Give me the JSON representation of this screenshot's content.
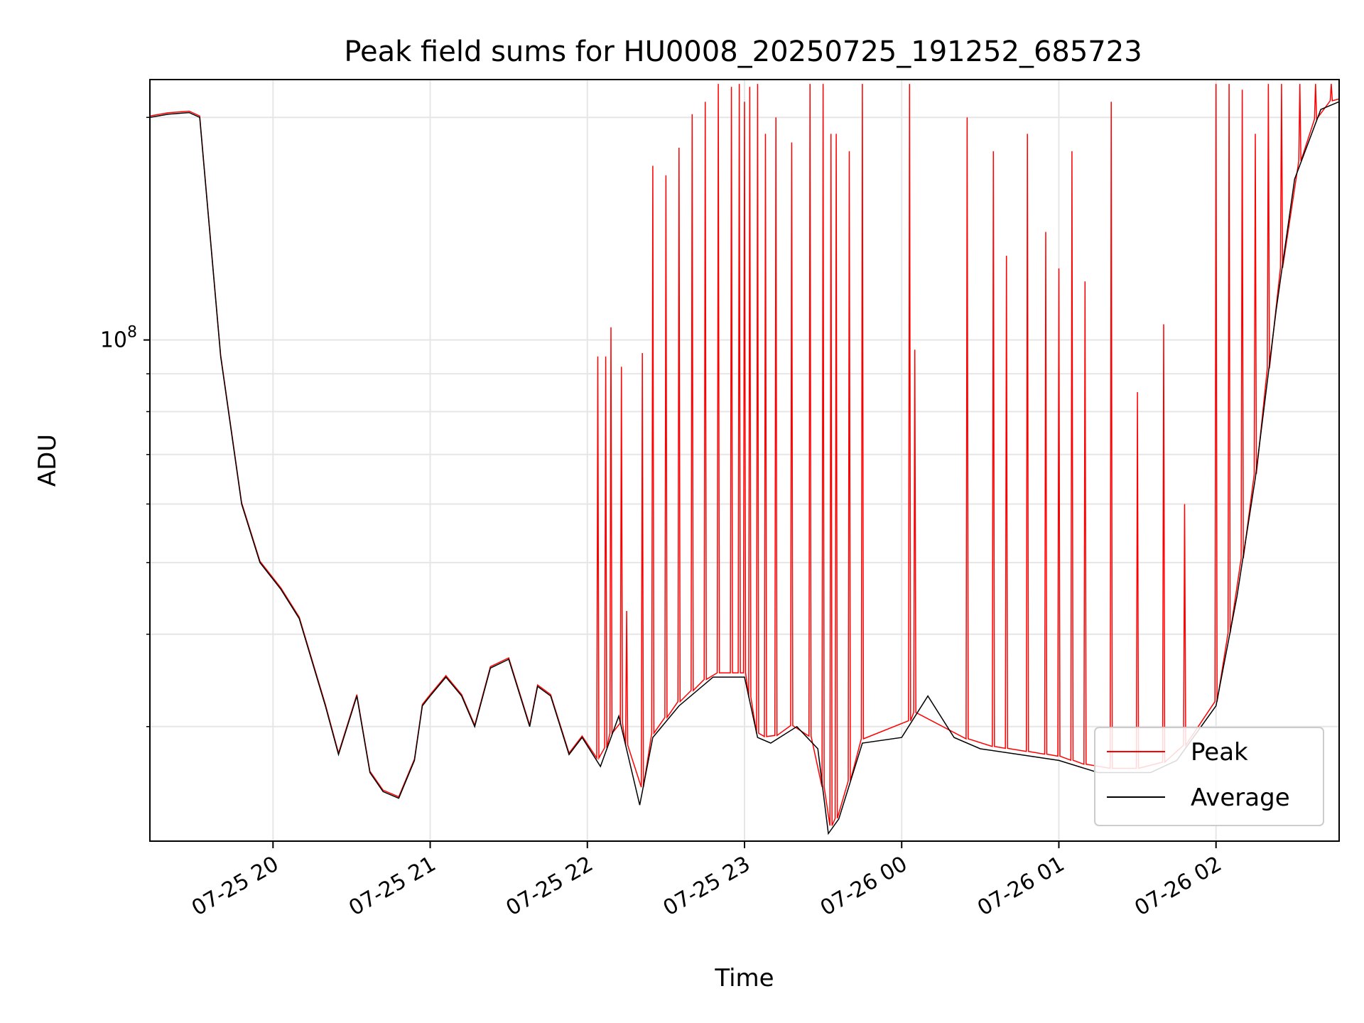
{
  "chart_data": {
    "type": "line",
    "title": "Peak field sums for HU0008_20250725_191252_685723",
    "xlabel": "Time",
    "ylabel": "ADU",
    "y_scale": "log",
    "xlim": [
      "2025-07-25T19:13",
      "2025-07-26T02:47"
    ],
    "ylim": [
      21000000,
      225000000
    ],
    "x_ticks": [
      "07-25 20",
      "07-25 21",
      "07-25 22",
      "07-25 23",
      "07-26 00",
      "07-26 01",
      "07-26 02"
    ],
    "y_ticks": [
      {
        "label": "10",
        "exponent": "8",
        "value": 100000000
      }
    ],
    "y_minor_ticks": [
      30000000,
      40000000,
      50000000,
      60000000,
      70000000,
      80000000,
      90000000,
      200000000
    ],
    "grid": true,
    "legend": {
      "position": "lower-right",
      "entries": [
        "Peak",
        "Average"
      ]
    },
    "colors": {
      "Peak": "#ff0000",
      "Average": "#000000",
      "grid": "#e6e6e6"
    },
    "series": [
      {
        "name": "Average",
        "x": [
          "2025-07-25T19:13",
          "2025-07-25T19:20",
          "2025-07-25T19:28",
          "2025-07-25T19:32",
          "2025-07-25T19:40",
          "2025-07-25T19:48",
          "2025-07-25T19:55",
          "2025-07-25T20:03",
          "2025-07-25T20:10",
          "2025-07-25T20:20",
          "2025-07-25T20:25",
          "2025-07-25T20:32",
          "2025-07-25T20:37",
          "2025-07-25T20:42",
          "2025-07-25T20:48",
          "2025-07-25T20:54",
          "2025-07-25T20:57",
          "2025-07-25T21:00",
          "2025-07-25T21:06",
          "2025-07-25T21:12",
          "2025-07-25T21:17",
          "2025-07-25T21:23",
          "2025-07-25T21:30",
          "2025-07-25T21:38",
          "2025-07-25T21:41",
          "2025-07-25T21:46",
          "2025-07-25T21:53",
          "2025-07-25T21:58",
          "2025-07-25T22:05",
          "2025-07-25T22:12",
          "2025-07-25T22:20",
          "2025-07-25T22:25",
          "2025-07-25T22:35",
          "2025-07-25T22:48",
          "2025-07-25T23:00",
          "2025-07-25T23:05",
          "2025-07-25T23:10",
          "2025-07-25T23:20",
          "2025-07-25T23:28",
          "2025-07-25T23:32",
          "2025-07-25T23:36",
          "2025-07-25T23:45",
          "2025-07-26T00:00",
          "2025-07-26T00:10",
          "2025-07-26T00:20",
          "2025-07-26T00:30",
          "2025-07-26T00:45",
          "2025-07-26T01:00",
          "2025-07-26T01:15",
          "2025-07-26T01:35",
          "2025-07-26T01:45",
          "2025-07-26T02:00",
          "2025-07-26T02:08",
          "2025-07-26T02:15",
          "2025-07-26T02:23",
          "2025-07-26T02:30",
          "2025-07-26T02:40",
          "2025-07-26T02:47"
        ],
        "values": [
          200000000,
          202000000,
          203000000,
          200000000,
          95000000,
          60000000,
          50000000,
          46000000,
          42000000,
          32000000,
          27500000,
          33000000,
          26000000,
          24500000,
          24000000,
          27000000,
          32000000,
          33000000,
          35000000,
          33000000,
          30000000,
          36000000,
          37000000,
          30000000,
          34000000,
          33000000,
          27500000,
          29000000,
          26500000,
          31000000,
          23500000,
          29000000,
          32000000,
          35000000,
          35000000,
          29000000,
          28500000,
          30000000,
          28000000,
          21500000,
          22500000,
          28500000,
          29000000,
          33000000,
          29000000,
          28000000,
          27500000,
          27000000,
          26000000,
          26000000,
          27000000,
          32000000,
          45000000,
          65000000,
          110000000,
          165000000,
          205000000,
          210000000
        ]
      },
      {
        "name": "Peak",
        "x": [
          "2025-07-25T22:04",
          "2025-07-25T22:07",
          "2025-07-25T22:09",
          "2025-07-25T22:13",
          "2025-07-25T22:15",
          "2025-07-25T22:21",
          "2025-07-25T22:25",
          "2025-07-25T22:30",
          "2025-07-25T22:35",
          "2025-07-25T22:40",
          "2025-07-25T22:45",
          "2025-07-25T22:50",
          "2025-07-25T22:55",
          "2025-07-25T22:58",
          "2025-07-25T23:00",
          "2025-07-25T23:02",
          "2025-07-25T23:05",
          "2025-07-25T23:08",
          "2025-07-25T23:12",
          "2025-07-25T23:18",
          "2025-07-25T23:25",
          "2025-07-25T23:30",
          "2025-07-25T23:33",
          "2025-07-25T23:35",
          "2025-07-25T23:40",
          "2025-07-25T23:45",
          "2025-07-26T00:03",
          "2025-07-26T00:05",
          "2025-07-26T00:25",
          "2025-07-26T00:35",
          "2025-07-26T00:40",
          "2025-07-26T00:48",
          "2025-07-26T00:55",
          "2025-07-26T01:00",
          "2025-07-26T01:05",
          "2025-07-26T01:10",
          "2025-07-26T01:20",
          "2025-07-26T01:30",
          "2025-07-26T01:40",
          "2025-07-26T01:48",
          "2025-07-26T02:00",
          "2025-07-26T02:05",
          "2025-07-26T02:10",
          "2025-07-26T02:15",
          "2025-07-26T02:20",
          "2025-07-26T02:25",
          "2025-07-26T02:32",
          "2025-07-26T02:38",
          "2025-07-26T02:44"
        ],
        "values": [
          95000000,
          95000000,
          104000000,
          92000000,
          43000000,
          96000000,
          172000000,
          167000000,
          182000000,
          202000000,
          210000000,
          222000000,
          220000000,
          222000000,
          210000000,
          220000000,
          222000000,
          190000000,
          200000000,
          185000000,
          222000000,
          222000000,
          190000000,
          190000000,
          180000000,
          222000000,
          222000000,
          97000000,
          200000000,
          180000000,
          130000000,
          190000000,
          140000000,
          125000000,
          180000000,
          120000000,
          210000000,
          85000000,
          105000000,
          60000000,
          222000000,
          222000000,
          218000000,
          190000000,
          222000000,
          222000000,
          222000000,
          222000000,
          222000000
        ]
      }
    ]
  }
}
